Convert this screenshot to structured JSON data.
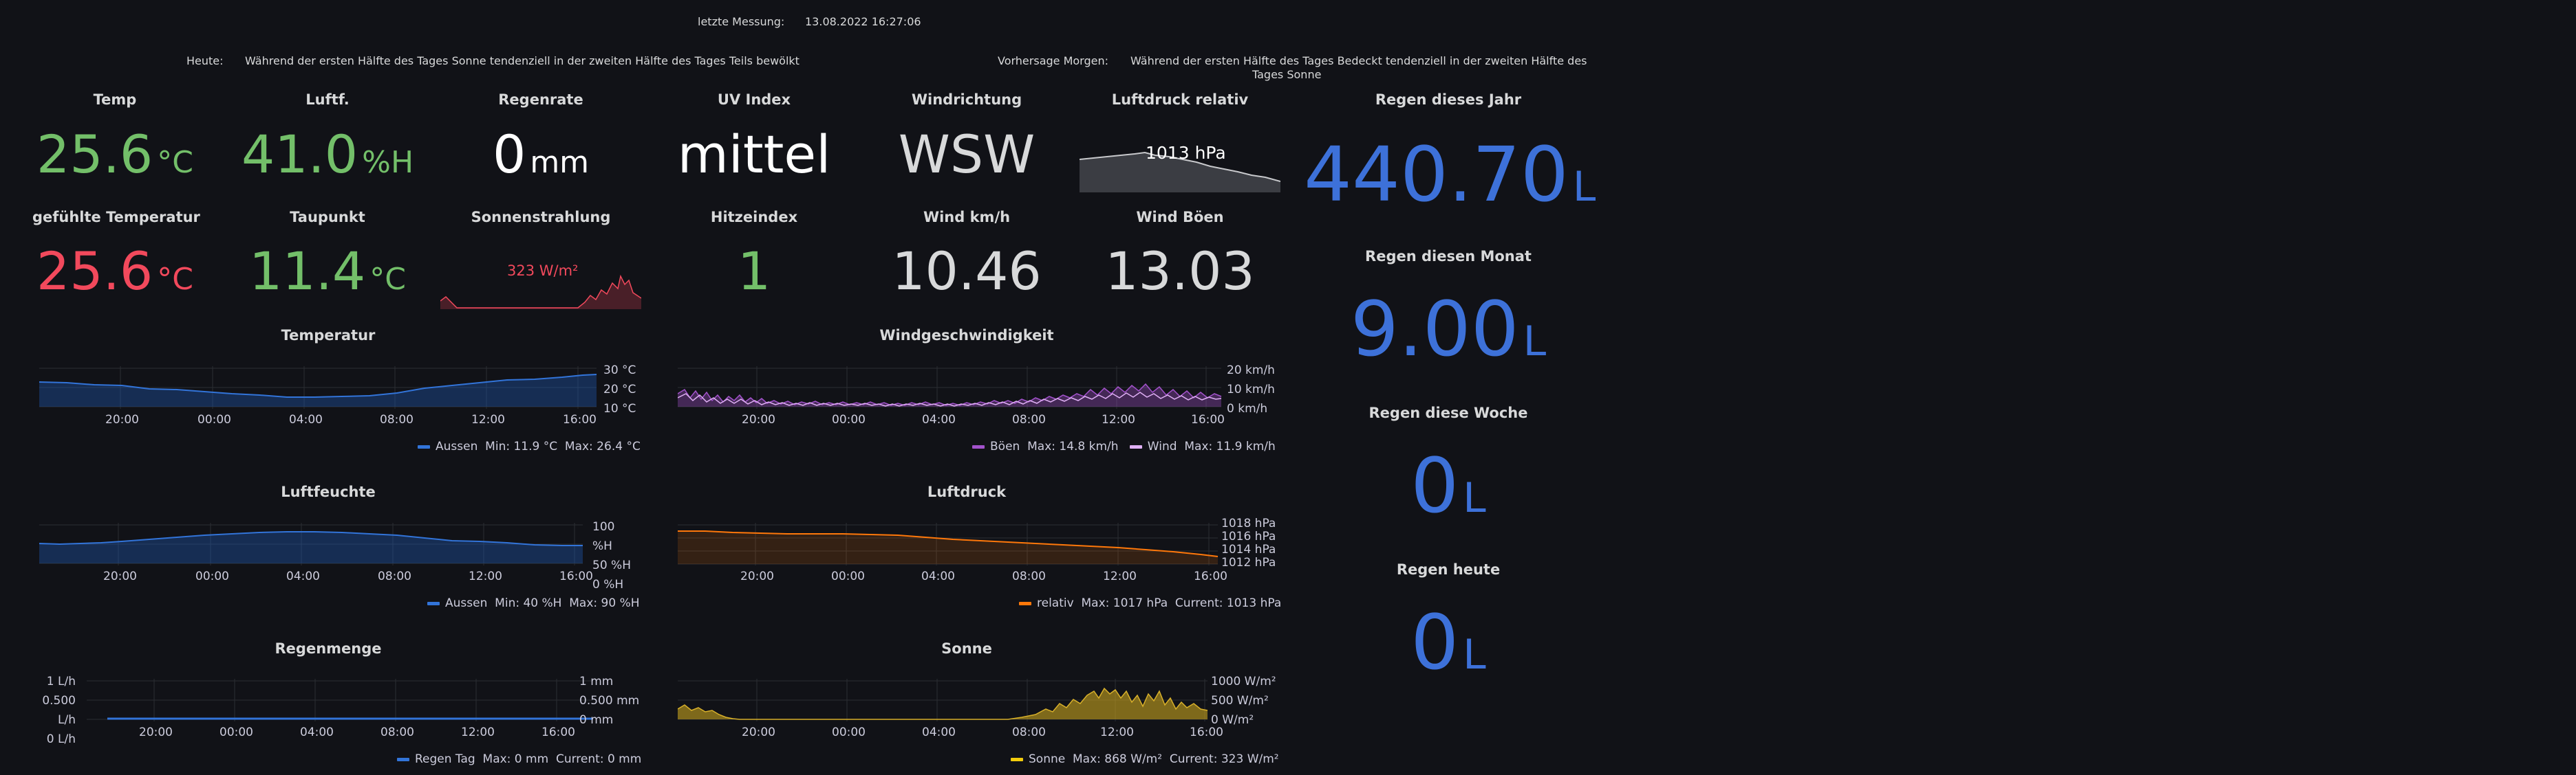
{
  "header": {
    "measurement_label": "letzte Messung:",
    "measurement_value": "13.08.2022 16:27:06",
    "today_label": "Heute:",
    "today_text": "Während der ersten Hälfte des Tages Sonne tendenziell in der zweiten Hälfte des Tages Teils bewölkt",
    "forecast_label": "Vorhersage Morgen:",
    "forecast_text_line1": "Während der ersten Hälfte des Tages Bedeckt tendenziell in der zweiten Hälfte des",
    "forecast_text_line2": "Tages Sonne"
  },
  "stats": {
    "temp": {
      "title": "Temp",
      "value": "25.6",
      "unit": "°C"
    },
    "humidity": {
      "title": "Luftf.",
      "value": "41.0",
      "unit": "%H"
    },
    "rainrate": {
      "title": "Regenrate",
      "value": "0",
      "unit": "mm"
    },
    "uv": {
      "title": "UV Index",
      "value": "mittel"
    },
    "winddir": {
      "title": "Windrichtung",
      "value": "WSW"
    },
    "pressure": {
      "title": "Luftdruck relativ",
      "value": "1013 hPa"
    },
    "feels": {
      "title": "gefühlte Temperatur",
      "value": "25.6",
      "unit": "°C"
    },
    "dewpoint": {
      "title": "Taupunkt",
      "value": "11.4",
      "unit": "°C"
    },
    "solar": {
      "title": "Sonnenstrahlung",
      "value": "323 W/m²"
    },
    "heatindex": {
      "title": "Hitzeindex",
      "value": "1"
    },
    "windspeed": {
      "title": "Wind km/h",
      "value": "10.46"
    },
    "gusts": {
      "title": "Wind Böen",
      "value": "13.03"
    },
    "rain_year": {
      "title": "Regen dieses Jahr",
      "value": "440.70",
      "unit": "L"
    },
    "rain_month": {
      "title": "Regen diesen Monat",
      "value": "9.00",
      "unit": "L"
    },
    "rain_week": {
      "title": "Regen diese Woche",
      "value": "0",
      "unit": "L"
    },
    "rain_today": {
      "title": "Regen heute",
      "value": "0",
      "unit": "L"
    }
  },
  "colors": {
    "green": "#73bf69",
    "red": "#f2495c",
    "blue": "#3d71d9",
    "orange": "#ff780a",
    "purple": "#a352cc",
    "lavender": "#e0b0f5",
    "yellow": "#c8a31e",
    "bluefill": "#1f60c4"
  },
  "charts": {
    "temperatur": {
      "title": "Temperatur",
      "yticks": [
        "30 °C",
        "20 °C",
        "10 °C"
      ],
      "xticks": [
        "20:00",
        "00:00",
        "04:00",
        "08:00",
        "12:00",
        "16:00"
      ],
      "legend": {
        "name": "Aussen",
        "min": "Min: 11.9 °C",
        "max": "Max: 26.4 °C"
      }
    },
    "wind": {
      "title": "Windgeschwindigkeit",
      "yticks": [
        "20 km/h",
        "10 km/h",
        "0 km/h"
      ],
      "xticks": [
        "20:00",
        "00:00",
        "04:00",
        "08:00",
        "12:00",
        "16:00"
      ],
      "legend": {
        "name1": "Böen",
        "max1": "Max: 14.8 km/h",
        "name2": "Wind",
        "max2": "Max: 11.9 km/h"
      }
    },
    "luftfeuchte": {
      "title": "Luftfeuchte",
      "yticks": [
        "100 %H",
        "50 %H",
        "0 %H"
      ],
      "xticks": [
        "20:00",
        "00:00",
        "04:00",
        "08:00",
        "12:00",
        "16:00"
      ],
      "legend": {
        "name": "Aussen",
        "min": "Min: 40 %H",
        "max": "Max: 90 %H"
      }
    },
    "luftdruck": {
      "title": "Luftdruck",
      "yticks": [
        "1018 hPa",
        "1016 hPa",
        "1014 hPa",
        "1012 hPa"
      ],
      "xticks": [
        "20:00",
        "00:00",
        "04:00",
        "08:00",
        "12:00",
        "16:00"
      ],
      "legend": {
        "name": "relativ",
        "max": "Max: 1017 hPa",
        "current": "Current: 1013 hPa"
      }
    },
    "regenmenge": {
      "title": "Regenmenge",
      "yticks_left": [
        "1 L/h",
        "0.500 L/h",
        "0 L/h"
      ],
      "yticks_right": [
        "1 mm",
        "0.500 mm",
        "0 mm"
      ],
      "xticks": [
        "20:00",
        "00:00",
        "04:00",
        "08:00",
        "12:00",
        "16:00"
      ],
      "legend": {
        "name": "Regen Tag",
        "max": "Max: 0 mm",
        "current": "Current: 0 mm"
      }
    },
    "sonne": {
      "title": "Sonne",
      "yticks": [
        "1000 W/m²",
        "500 W/m²",
        "0 W/m²"
      ],
      "xticks": [
        "20:00",
        "00:00",
        "04:00",
        "08:00",
        "12:00",
        "16:00"
      ],
      "legend": {
        "name": "Sonne",
        "max": "Max: 868 W/m²",
        "current": "Current: 323 W/m²"
      }
    }
  }
}
